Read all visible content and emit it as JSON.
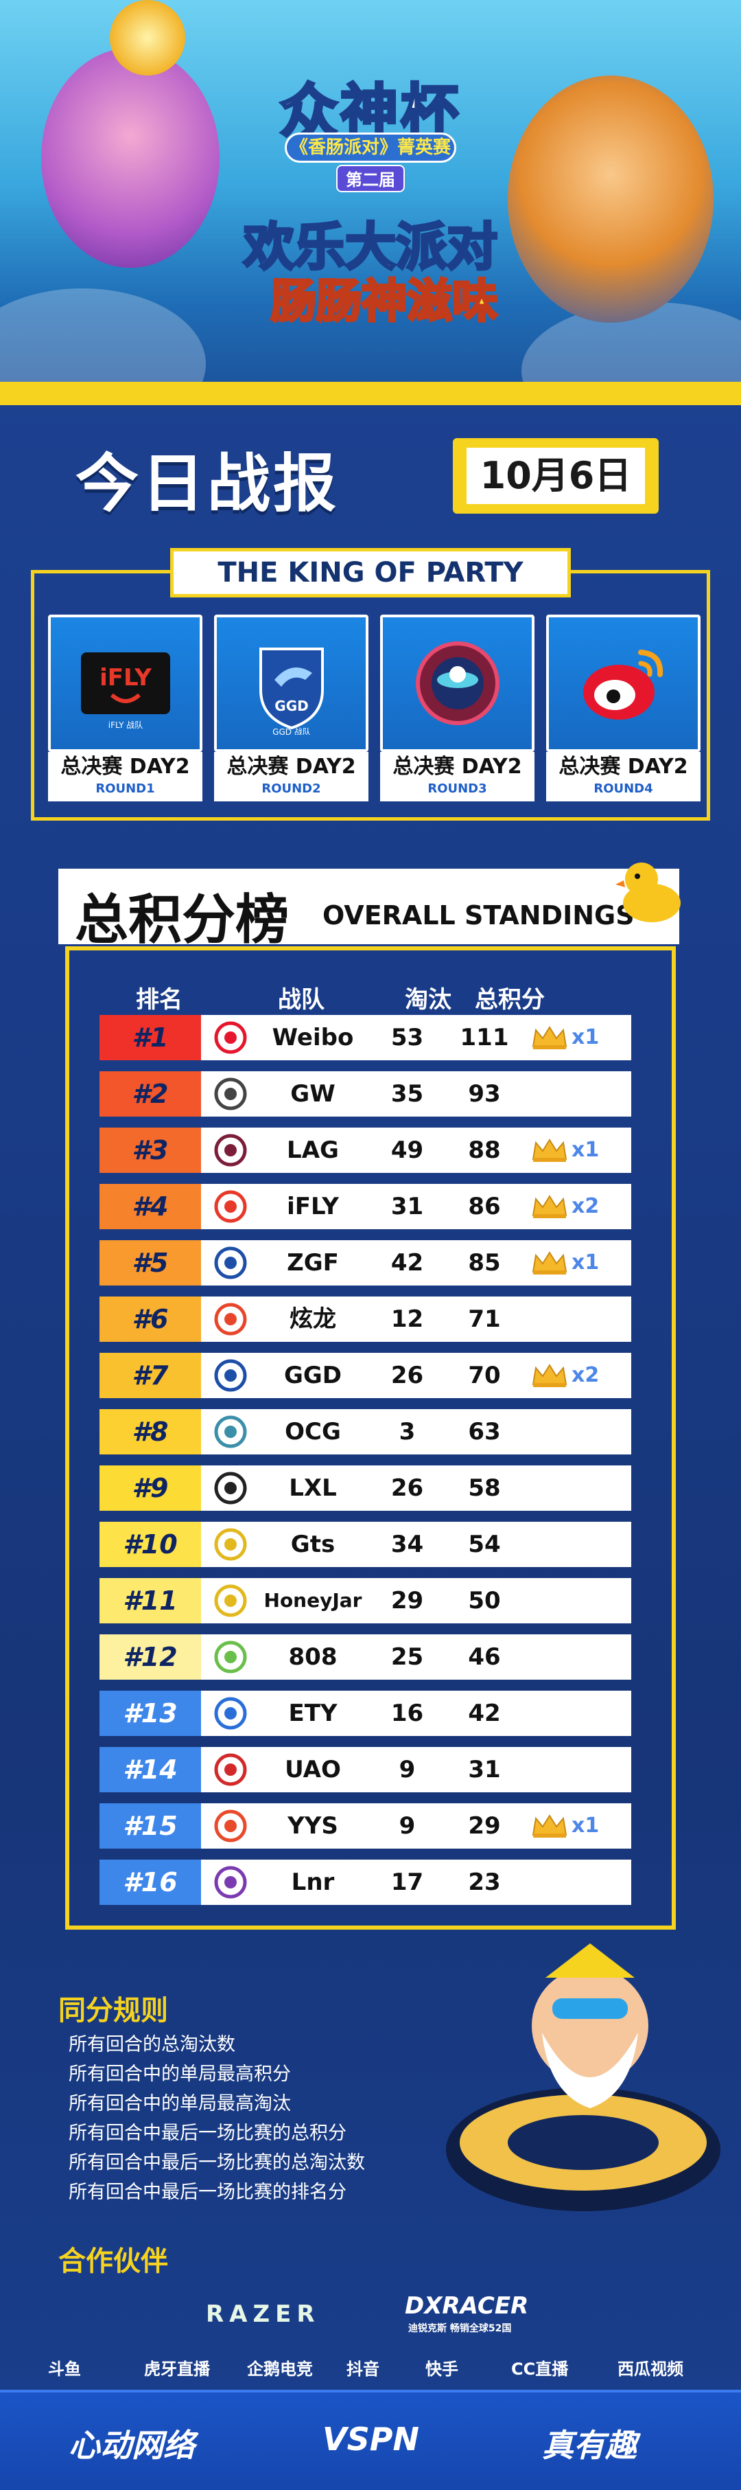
{
  "hero": {
    "title": "众神杯",
    "subtitle": "《香肠派对》菁英赛",
    "edition": "第二届",
    "slogan_line1": "欢乐大派对",
    "slogan_line2": "肠肠神滋味"
  },
  "report": {
    "title": "今日战报",
    "date": "10月6日"
  },
  "king_of_party": {
    "label": "THE KING OF PARTY",
    "rounds": [
      {
        "title": "总决赛 DAY2",
        "round": "ROUND1",
        "team_logo_text": "iFLY",
        "team_logo_sub": "iFLY 战队"
      },
      {
        "title": "总决赛 DAY2",
        "round": "ROUND2",
        "team_logo_text": "GGD",
        "team_logo_sub": "GGD 战队"
      },
      {
        "title": "总决赛 DAY2",
        "round": "ROUND3",
        "team_logo_text": "",
        "team_logo_sub": ""
      },
      {
        "title": "总决赛 DAY2",
        "round": "ROUND4",
        "team_logo_text": "",
        "team_logo_sub": ""
      }
    ]
  },
  "standings": {
    "title_zh": "总积分榜",
    "title_en": "OVERALL STANDINGS",
    "headers": {
      "rank": "排名",
      "team": "战队",
      "kills": "淘汰",
      "points": "总积分"
    },
    "rows": [
      {
        "rank": "#1",
        "team": "Weibo",
        "kills": "53",
        "points": "111",
        "crowns": "x1",
        "rank_color": "#f0312a"
      },
      {
        "rank": "#2",
        "team": "GW",
        "kills": "35",
        "points": "93",
        "crowns": "",
        "rank_color": "#f2562a"
      },
      {
        "rank": "#3",
        "team": "LAG",
        "kills": "49",
        "points": "88",
        "crowns": "x1",
        "rank_color": "#f46a2b"
      },
      {
        "rank": "#4",
        "team": "iFLY",
        "kills": "31",
        "points": "86",
        "crowns": "x2",
        "rank_color": "#f6822c"
      },
      {
        "rank": "#5",
        "team": "ZGF",
        "kills": "42",
        "points": "85",
        "crowns": "x1",
        "rank_color": "#f89a2d"
      },
      {
        "rank": "#6",
        "team": "炫龙",
        "kills": "12",
        "points": "71",
        "crowns": "",
        "rank_color": "#f9b02e"
      },
      {
        "rank": "#7",
        "team": "GGD",
        "kills": "26",
        "points": "70",
        "crowns": "x2",
        "rank_color": "#fac12f"
      },
      {
        "rank": "#8",
        "team": "OCG",
        "kills": "3",
        "points": "63",
        "crowns": "",
        "rank_color": "#fbd030"
      },
      {
        "rank": "#9",
        "team": "LXL",
        "kills": "26",
        "points": "58",
        "crowns": "",
        "rank_color": "#fcdb34"
      },
      {
        "rank": "#10",
        "team": "Gts",
        "kills": "34",
        "points": "54",
        "crowns": "",
        "rank_color": "#fde24a"
      },
      {
        "rank": "#11",
        "team": "HoneyJar",
        "kills": "29",
        "points": "50",
        "crowns": "",
        "rank_color": "#fde96d"
      },
      {
        "rank": "#12",
        "team": "808",
        "kills": "25",
        "points": "46",
        "crowns": "",
        "rank_color": "#fdf09e"
      },
      {
        "rank": "#13",
        "team": "ETY",
        "kills": "16",
        "points": "42",
        "crowns": "",
        "rank_color": "#3d86ea"
      },
      {
        "rank": "#14",
        "team": "UAO",
        "kills": "9",
        "points": "31",
        "crowns": "",
        "rank_color": "#3d86ea"
      },
      {
        "rank": "#15",
        "team": "YYS",
        "kills": "9",
        "points": "29",
        "crowns": "x1",
        "rank_color": "#3d86ea"
      },
      {
        "rank": "#16",
        "team": "Lnr",
        "kills": "17",
        "points": "23",
        "crowns": "",
        "rank_color": "#3d86ea"
      }
    ]
  },
  "tie_rules": {
    "title": "同分规则",
    "items": [
      "所有回合的总淘汰数",
      "所有回合中的单局最高积分",
      "所有回合中的单局最高淘汰",
      "所有回合中最后一场比赛的总积分",
      "所有回合中最后一场比赛的总淘汰数",
      "所有回合中最后一场比赛的排名分"
    ]
  },
  "partners": {
    "title": "合作伙伴",
    "main": [
      "RAZER",
      "DXRACER"
    ],
    "dxracer_tagline": "迪锐克斯 畅销全球52国",
    "media": [
      "斗鱼",
      "虎牙直播",
      "企鹅电竞",
      "抖音",
      "快手",
      "CC直播",
      "西瓜视频"
    ],
    "bottom": [
      "心动网络",
      "VSPN",
      "真有趣"
    ]
  },
  "colors": {
    "accent_yellow": "#f6d31f",
    "background_blue": "#1b3f8f",
    "crown_gold": "#f5b82a",
    "crown_count": "#4c86e8"
  }
}
